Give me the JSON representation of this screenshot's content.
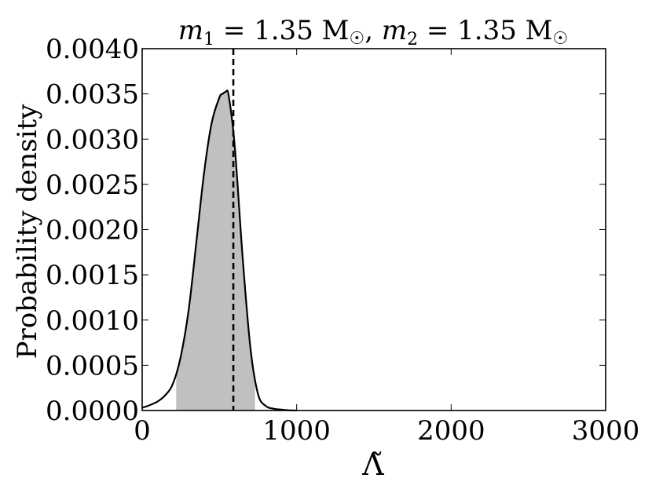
{
  "chart_data": {
    "type": "area",
    "title": "m₁ = 1.35 M☉,  m₂ = 1.35 M☉",
    "title_parts": {
      "m1_var": "m",
      "m1_sub": "1",
      "m1_value": " = 1.35 M",
      "m1_sun": "☉",
      "sep": ",  ",
      "m2_var": "m",
      "m2_sub": "2",
      "m2_value": " = 1.35 M",
      "m2_sun": "☉"
    },
    "xlabel": "Λ̃",
    "ylabel": "Probability density",
    "xlim": [
      0,
      3000
    ],
    "ylim": [
      0,
      0.004
    ],
    "xticks": [
      "0",
      "1000",
      "2000",
      "3000"
    ],
    "yticks": [
      "0.0000",
      "0.0005",
      "0.0010",
      "0.0015",
      "0.0020",
      "0.0025",
      "0.0030",
      "0.0035",
      "0.0040"
    ],
    "grid": false,
    "series": [
      {
        "x": [
          0,
          50,
          100,
          150,
          200,
          250,
          300,
          350,
          400,
          450,
          500,
          520,
          540,
          560,
          600,
          650,
          700,
          750,
          800,
          850,
          900,
          950,
          1000
        ],
        "y": [
          3e-05,
          6e-05,
          0.0001,
          0.00017,
          0.0003,
          0.0006,
          0.0011,
          0.00185,
          0.00262,
          0.00318,
          0.00346,
          0.0035,
          0.00352,
          0.00348,
          0.0029,
          0.0017,
          0.0007,
          0.00018,
          5e-05,
          2e-05,
          1e-05,
          3e-06,
          0.0
        ]
      }
    ],
    "shaded_interval": [
      220,
      730
    ],
    "vline": 590,
    "colors": {
      "line": "#000000",
      "fill": "#c0c0c0"
    }
  }
}
